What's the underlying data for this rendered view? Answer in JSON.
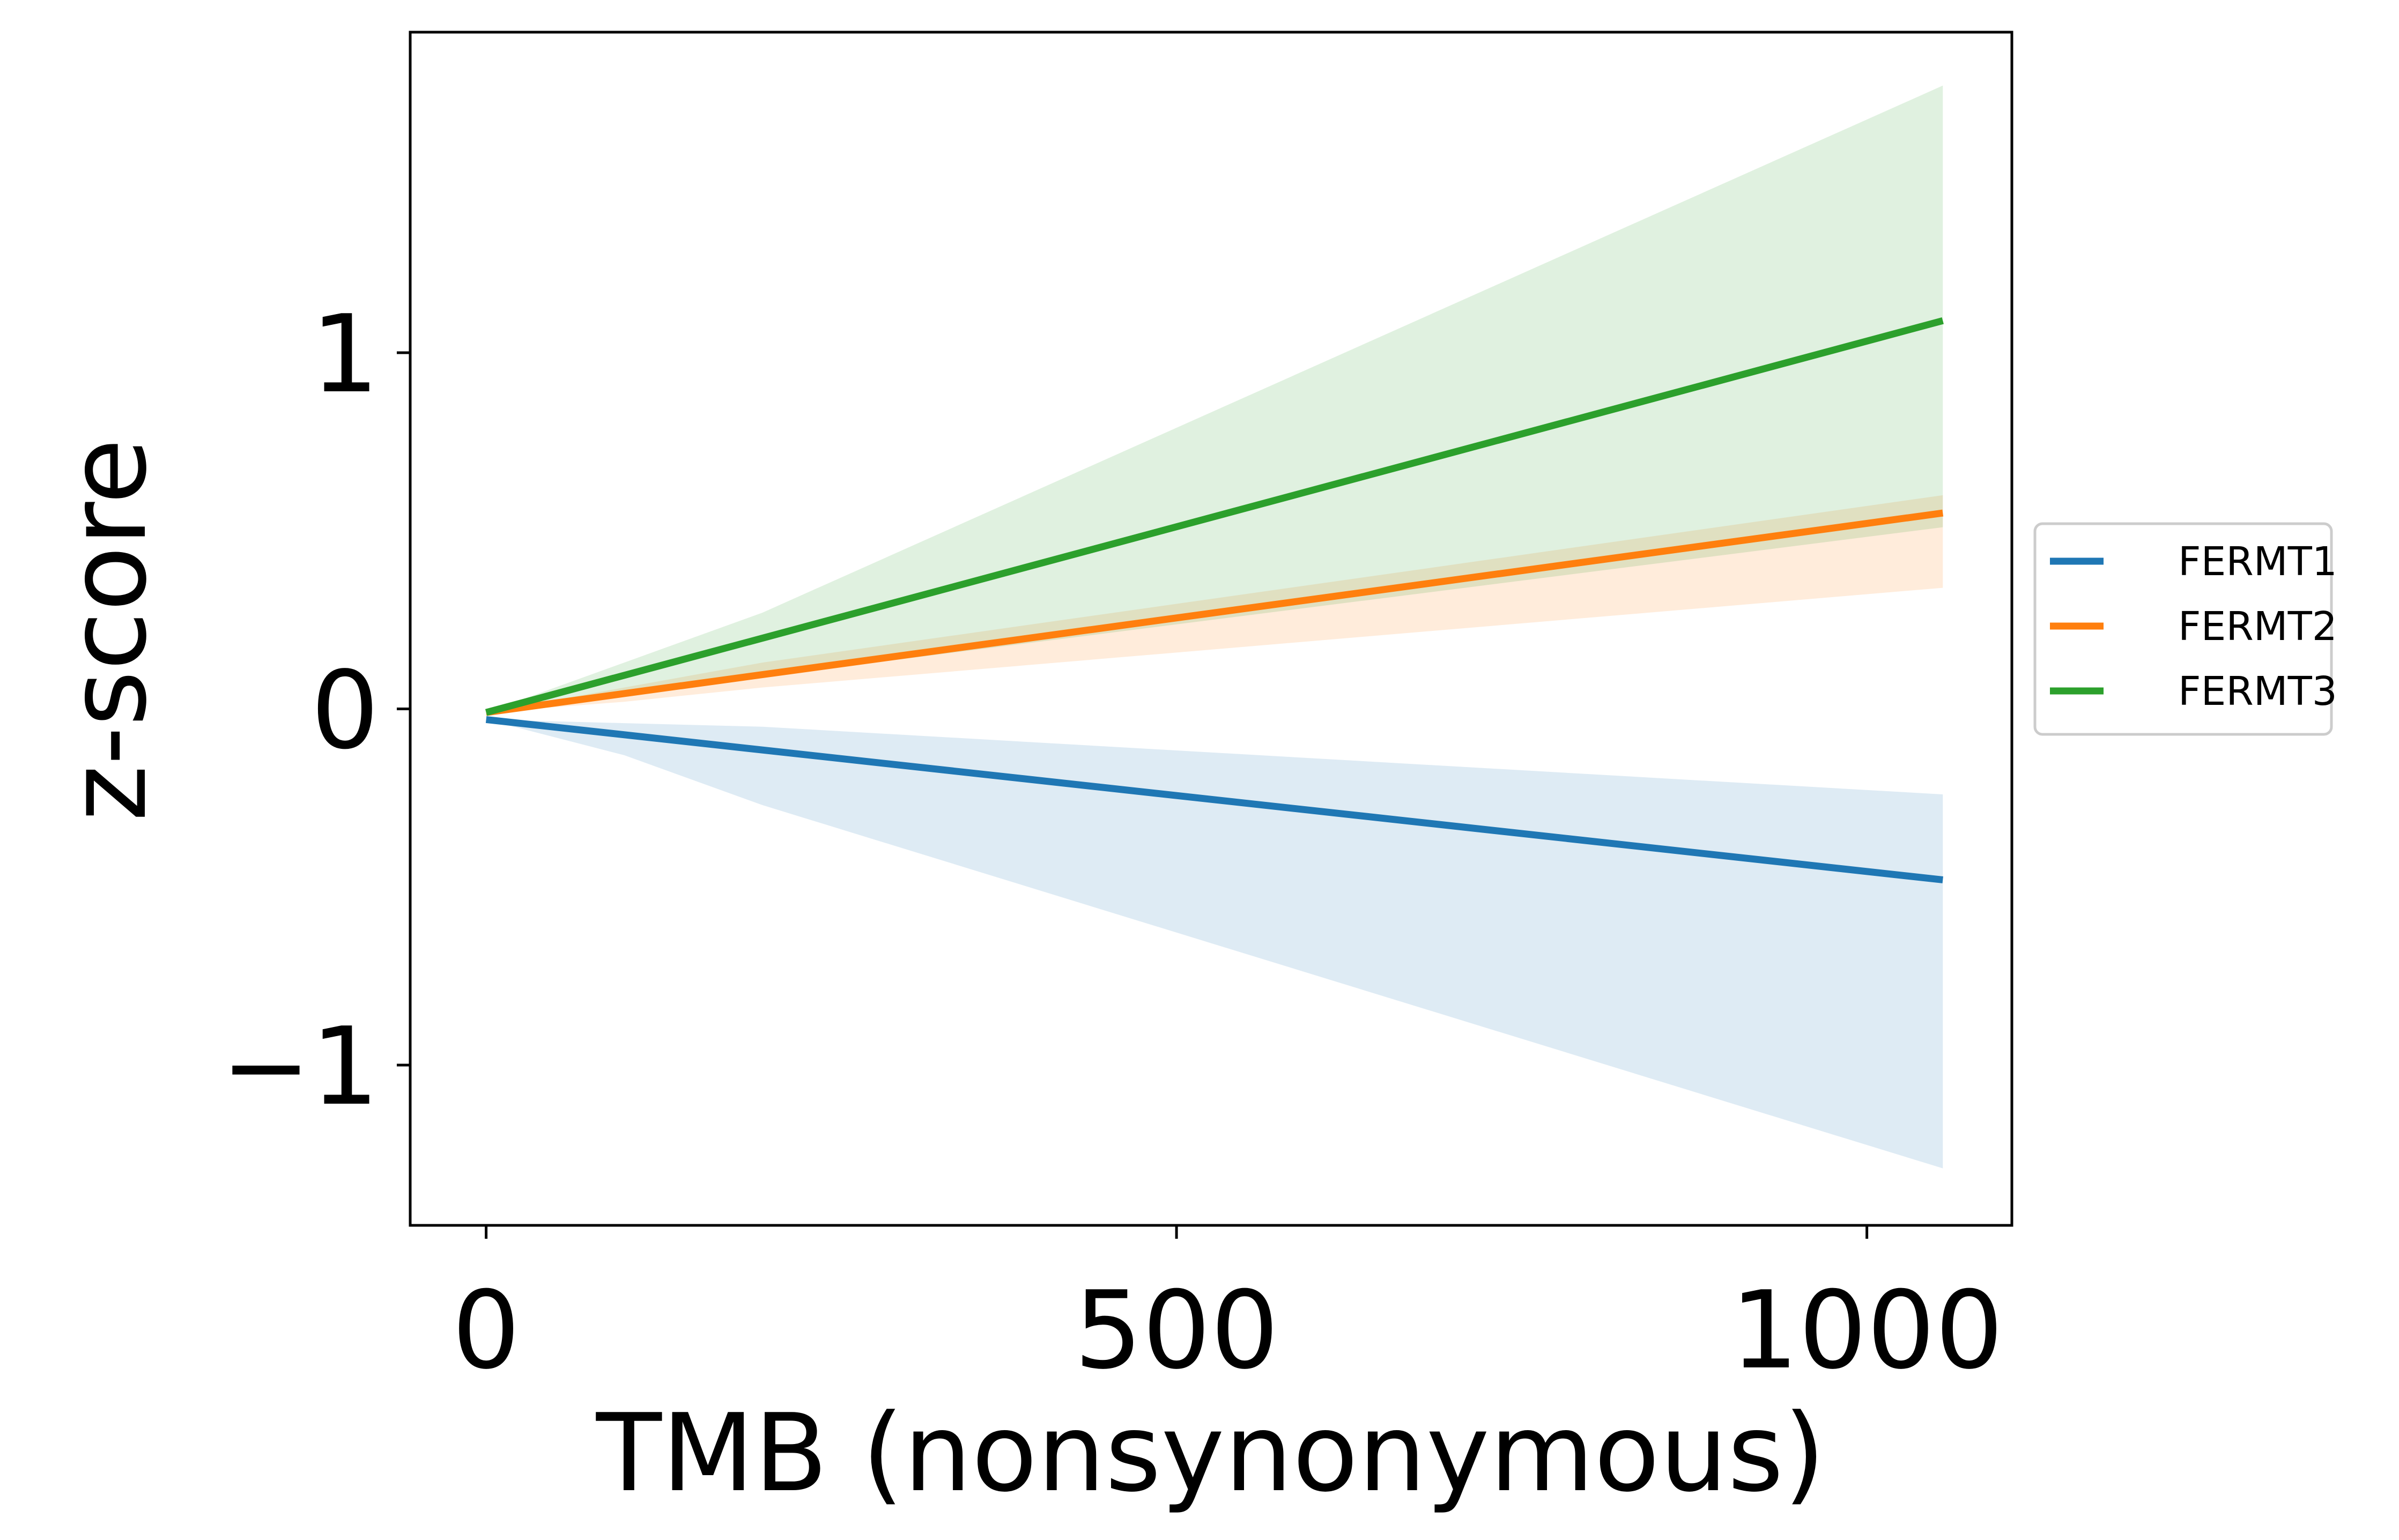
{
  "chart_data": {
    "type": "line",
    "xlabel": "TMB (nonsynonymous)",
    "ylabel": "z-score",
    "xlim": [
      -55,
      1105
    ],
    "ylim": [
      -1.45,
      1.9
    ],
    "xticks": [
      0,
      500,
      1000
    ],
    "xtick_labels": [
      "0",
      "500",
      "1000"
    ],
    "yticks": [
      -1,
      0,
      1
    ],
    "ytick_labels": [
      "−1",
      "0",
      "1"
    ],
    "legend_position": "outside-right",
    "grid": false,
    "series": [
      {
        "name": "FERMT1",
        "color": "#1f77b4",
        "x": [
          0,
          1055
        ],
        "y": [
          -0.03,
          -0.48
        ],
        "band_x": [
          0,
          100,
          200,
          1055
        ],
        "band_lower": [
          -0.03,
          -0.13,
          -0.27,
          -1.29
        ],
        "band_upper": [
          -0.03,
          -0.04,
          -0.05,
          -0.24
        ]
      },
      {
        "name": "FERMT2",
        "color": "#ff7f0e",
        "x": [
          0,
          1055
        ],
        "y": [
          -0.01,
          0.55
        ],
        "band_x": [
          0,
          100,
          200,
          1055
        ],
        "band_lower": [
          -0.01,
          0.02,
          0.06,
          0.34
        ],
        "band_upper": [
          -0.01,
          0.06,
          0.13,
          0.6
        ]
      },
      {
        "name": "FERMT3",
        "color": "#2ca02c",
        "x": [
          0,
          1055
        ],
        "y": [
          -0.01,
          1.09
        ],
        "band_x": [
          0,
          100,
          200,
          1055
        ],
        "band_lower": [
          -0.01,
          0.04,
          0.09,
          0.51
        ],
        "band_upper": [
          -0.01,
          0.13,
          0.27,
          1.75
        ]
      }
    ]
  }
}
